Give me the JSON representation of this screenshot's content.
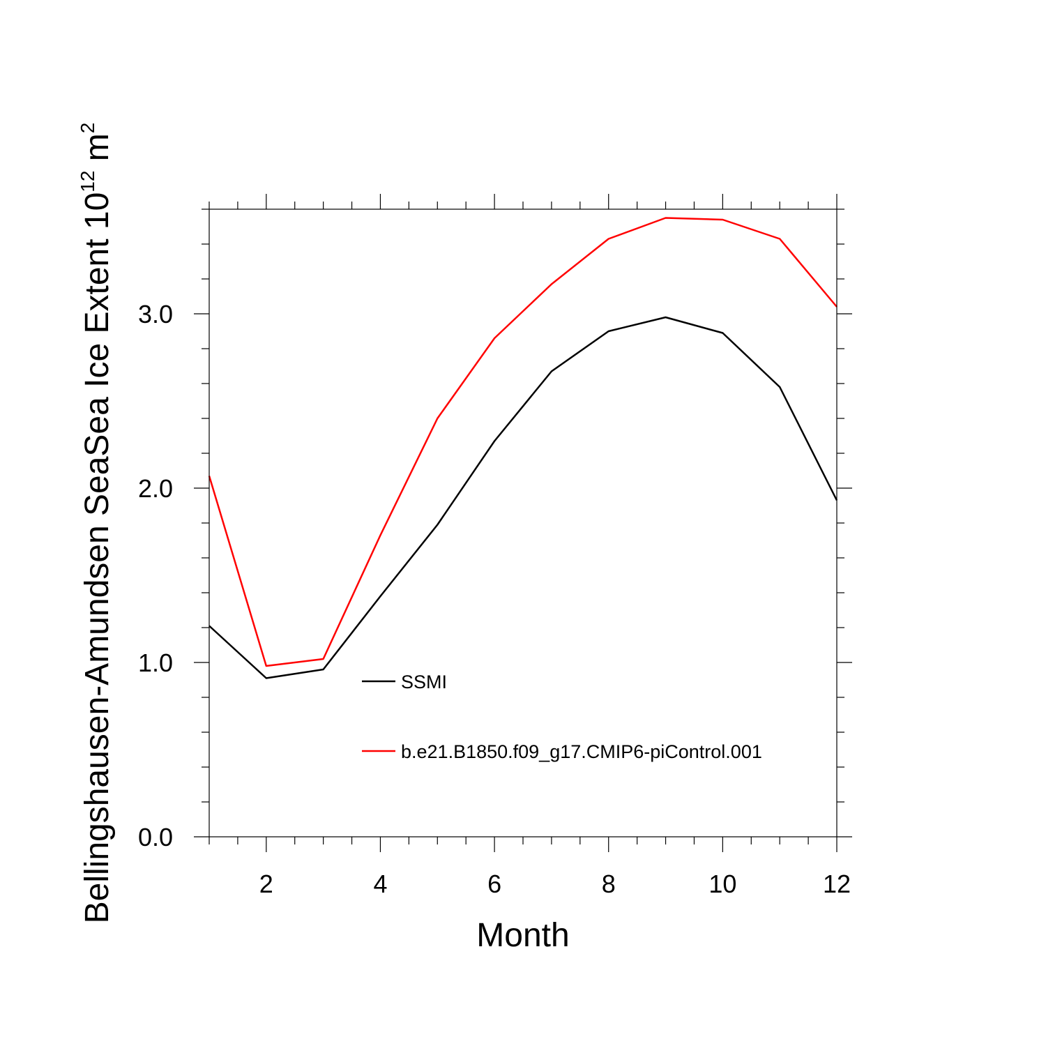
{
  "chart_data": {
    "type": "line",
    "xlabel": "Month",
    "ylabel": "Bellingshausen-Amundsen SeaSea Ice Extent 10",
    "ylabel_sup": "12",
    "ylabel_unit": " m",
    "ylabel_unit_sup": "2",
    "xlim": [
      1,
      12
    ],
    "ylim": [
      0,
      3.6
    ],
    "x_ticks": [
      2,
      4,
      6,
      8,
      10,
      12
    ],
    "x_tick_labels": [
      "2",
      "4",
      "6",
      "8",
      "10",
      "12"
    ],
    "y_ticks": [
      0,
      1,
      2,
      3
    ],
    "y_tick_labels": [
      "0.0",
      "1.0",
      "2.0",
      "3.0"
    ],
    "grid": false,
    "legend_position": "inside, lower-middle",
    "x": [
      1,
      2,
      3,
      4,
      5,
      6,
      7,
      8,
      9,
      10,
      11,
      12
    ],
    "series": [
      {
        "name": "SSMI",
        "color": "#000000",
        "values": [
          1.21,
          0.91,
          0.96,
          1.38,
          1.79,
          2.27,
          2.67,
          2.9,
          2.98,
          2.89,
          2.58,
          1.93
        ]
      },
      {
        "name": "b.e21.B1850.f09_g17.CMIP6-piControl.001",
        "color": "#ff0000",
        "values": [
          2.07,
          0.98,
          1.02,
          1.73,
          2.4,
          2.86,
          3.17,
          3.43,
          3.55,
          3.54,
          3.43,
          3.04
        ]
      }
    ]
  }
}
